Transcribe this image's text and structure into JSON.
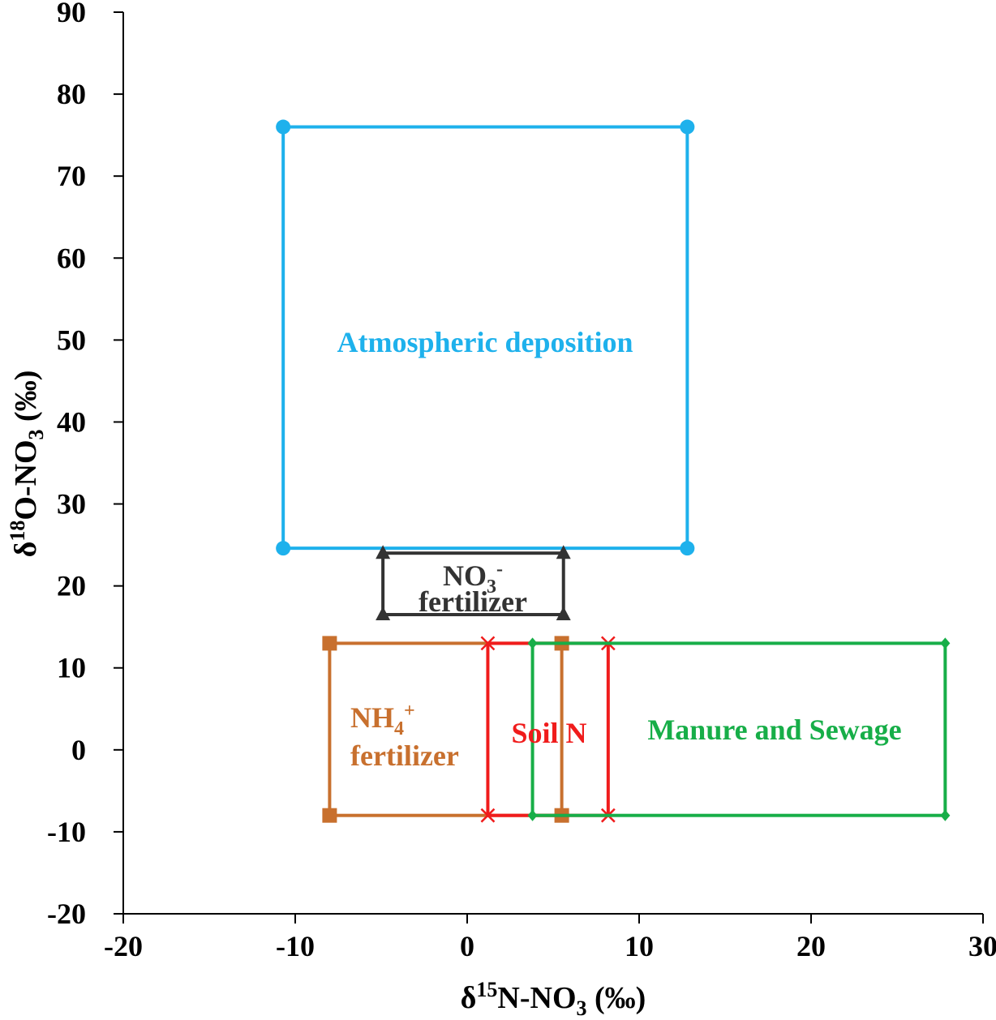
{
  "chart_data": {
    "type": "scatter",
    "xlabel": "δ15N-NO3 (‰)",
    "ylabel": "δ18O-NO3 (‰)",
    "xlim": [
      -20,
      30
    ],
    "ylim": [
      -20,
      90
    ],
    "x_ticks": [
      -20,
      -10,
      0,
      10,
      20,
      30
    ],
    "y_ticks": [
      -20,
      -10,
      0,
      10,
      20,
      30,
      40,
      50,
      60,
      70,
      80,
      90
    ],
    "grid": false,
    "series": [
      {
        "name": "Atmospheric deposition",
        "marker": "circle",
        "color": "#1EB1EC",
        "x_range": [
          -10.7,
          12.8
        ],
        "y_range": [
          24.6,
          76
        ]
      },
      {
        "name": "NO3- fertilizer",
        "marker": "triangle",
        "color": "#333333",
        "x_range": [
          -4.9,
          5.6
        ],
        "y_range": [
          16.5,
          24
        ]
      },
      {
        "name": "NH4+ fertilizer",
        "marker": "square",
        "color": "#C8702E",
        "x_range": [
          -8,
          5.5
        ],
        "y_range": [
          -8,
          13
        ]
      },
      {
        "name": "Soil N",
        "marker": "x",
        "color": "#F01C1C",
        "x_range": [
          1.2,
          8.2
        ],
        "y_range": [
          -8,
          13
        ]
      },
      {
        "name": "Manure and Sewage",
        "marker": "diamond",
        "color": "#17AE48",
        "x_range": [
          3.8,
          27.8
        ],
        "y_range": [
          -8,
          13
        ]
      }
    ],
    "annotations": {
      "atm_label": "Atmospheric deposition",
      "no3_label_line1": "NO3-",
      "no3_label_line2": "fertilizer",
      "nh4_label_line1": "NH4+",
      "nh4_label_line2": "fertilizer",
      "soil_label": "Soil N",
      "manure_label": "Manure and Sewage"
    }
  }
}
